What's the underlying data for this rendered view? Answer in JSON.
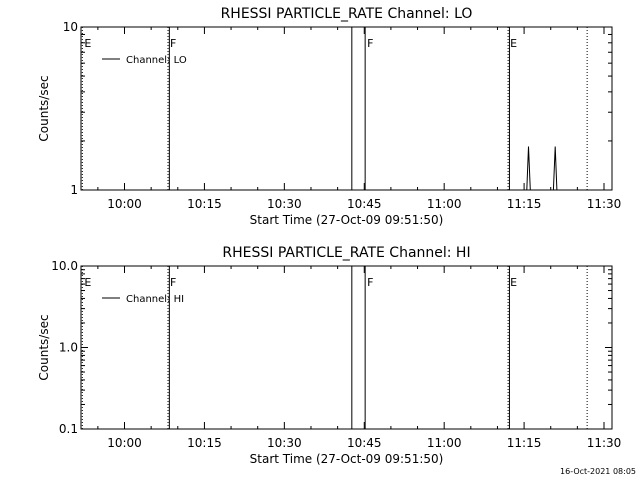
{
  "timestamp": "16-Oct-2021 08:05",
  "chart_data": [
    {
      "type": "line",
      "title": "RHESSI PARTICLE_RATE Channel: LO",
      "xlabel": "Start Time (27-Oct-09 09:51:50)",
      "ylabel": "Counts/sec",
      "y_scale": "log",
      "ylim": [
        1,
        10
      ],
      "xlim": [
        "09:51:50",
        "11:31:30"
      ],
      "y_ticks": [
        {
          "value": 1,
          "label": "1"
        },
        {
          "value": 10,
          "label": "10"
        }
      ],
      "x_ticks": [
        {
          "value": "10:00",
          "label": "10:00"
        },
        {
          "value": "10:15",
          "label": "10:15"
        },
        {
          "value": "10:30",
          "label": "10:30"
        },
        {
          "value": "10:45",
          "label": "10:45"
        },
        {
          "value": "11:00",
          "label": "11:00"
        },
        {
          "value": "11:15",
          "label": "11:15"
        },
        {
          "value": "11:30",
          "label": "11:30"
        }
      ],
      "legend": {
        "position": "top-left",
        "entries": [
          "Channel: LO"
        ]
      },
      "series": [
        {
          "name": "Channel: LO",
          "points": [
            {
              "t": "11:15:30",
              "y": 1
            },
            {
              "t": "11:15:50",
              "y": 1.85
            },
            {
              "t": "11:16:10",
              "y": 1
            },
            {
              "t": "11:20:30",
              "y": 1
            },
            {
              "t": "11:20:50",
              "y": 1.85
            },
            {
              "t": "11:21:10",
              "y": 1
            }
          ]
        }
      ],
      "markers": [
        {
          "t": "09:52:05",
          "label": "E",
          "style": "dotted"
        },
        {
          "t": "10:08:10",
          "label": "F",
          "style": "dotted"
        },
        {
          "t": "10:08:25",
          "label": "",
          "style": "solid"
        },
        {
          "t": "10:42:40",
          "label": "",
          "style": "solid"
        },
        {
          "t": "10:45:10",
          "label": "F",
          "style": "solid"
        },
        {
          "t": "11:12:00",
          "label": "E",
          "style": "dotted"
        },
        {
          "t": "11:12:15",
          "label": "",
          "style": "solid"
        },
        {
          "t": "11:26:50",
          "label": "",
          "style": "dotted"
        }
      ]
    },
    {
      "type": "line",
      "title": "RHESSI PARTICLE_RATE Channel: HI",
      "xlabel": "Start Time (27-Oct-09 09:51:50)",
      "ylabel": "Counts/sec",
      "y_scale": "log",
      "ylim": [
        0.1,
        10
      ],
      "xlim": [
        "09:51:50",
        "11:31:30"
      ],
      "y_ticks": [
        {
          "value": 0.1,
          "label": "0.1"
        },
        {
          "value": 1,
          "label": "1.0"
        },
        {
          "value": 10,
          "label": "10.0"
        }
      ],
      "x_ticks": [
        {
          "value": "10:00",
          "label": "10:00"
        },
        {
          "value": "10:15",
          "label": "10:15"
        },
        {
          "value": "10:30",
          "label": "10:30"
        },
        {
          "value": "10:45",
          "label": "10:45"
        },
        {
          "value": "11:00",
          "label": "11:00"
        },
        {
          "value": "11:15",
          "label": "11:15"
        },
        {
          "value": "11:30",
          "label": "11:30"
        }
      ],
      "legend": {
        "position": "top-left",
        "entries": [
          "Channel: HI"
        ]
      },
      "series": [
        {
          "name": "Channel: HI",
          "points": []
        }
      ],
      "markers": [
        {
          "t": "09:52:05",
          "label": "E",
          "style": "dotted"
        },
        {
          "t": "10:08:10",
          "label": "F",
          "style": "dotted"
        },
        {
          "t": "10:08:25",
          "label": "",
          "style": "solid"
        },
        {
          "t": "10:42:40",
          "label": "",
          "style": "solid"
        },
        {
          "t": "10:45:10",
          "label": "F",
          "style": "solid"
        },
        {
          "t": "11:12:00",
          "label": "E",
          "style": "dotted"
        },
        {
          "t": "11:12:15",
          "label": "",
          "style": "solid"
        },
        {
          "t": "11:26:50",
          "label": "",
          "style": "dotted"
        }
      ]
    }
  ]
}
